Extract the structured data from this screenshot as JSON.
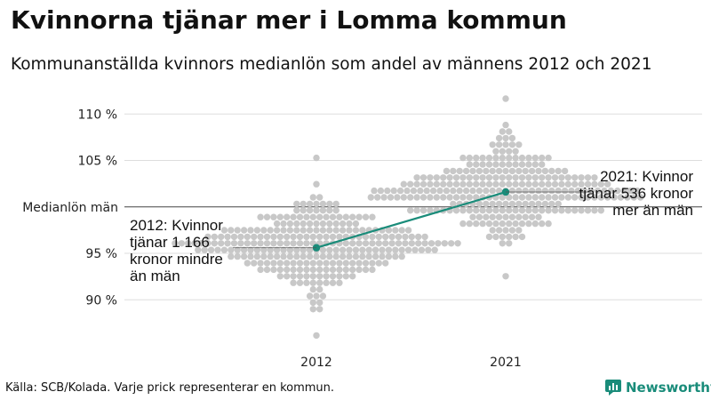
{
  "header": {
    "title": "Kvinnorna tjänar mer i Lomma kommun",
    "subtitle": "Kommunanställda kvinnors medianlön som andel av männens 2012 och 2021"
  },
  "footer": {
    "source": "Källa: SCB/Kolada. Varje prick representerar en kommun.",
    "brand": "Newsworthy"
  },
  "colors": {
    "dots": "#c8c8c8",
    "highlight": "#1a8c7a",
    "grid": "#dddddd",
    "reference": "#444444"
  },
  "chart_data": {
    "type": "scatter",
    "title": "Kvinnorna tjänar mer i Lomma kommun",
    "subtitle": "Kommunanställda kvinnors medianlön som andel av männens 2012 och 2021",
    "categories": [
      "2012",
      "2021"
    ],
    "ylim": [
      86,
      112
    ],
    "yticks": [
      90,
      95,
      100,
      105,
      110
    ],
    "ytick_labels": [
      "90 %",
      "95 %",
      "Medianlön män",
      "105 %",
      "110 %"
    ],
    "reference_value": 100,
    "reference_label": "Medianlön män",
    "distribution": [
      {
        "category": "2012",
        "count": 290,
        "center": 96.0,
        "sd": 2.3,
        "min": 86.5,
        "max": 105.3
      },
      {
        "category": "2021",
        "count": 290,
        "center": 101.5,
        "sd": 2.4,
        "min": 92.6,
        "max": 111.3
      }
    ],
    "highlight": {
      "name": "Lomma kommun",
      "values": [
        {
          "x": "2012",
          "y": 95.6
        },
        {
          "x": "2021",
          "y": 101.6
        }
      ]
    },
    "annotations": [
      {
        "category": "2012",
        "lines": [
          "2012: Kvinnor",
          "tjänar 1 166",
          "kronor mindre",
          "än män"
        ]
      },
      {
        "category": "2021",
        "lines": [
          "2021: Kvinnor",
          "tjänar 536 kronor",
          "mer än män"
        ]
      }
    ]
  }
}
